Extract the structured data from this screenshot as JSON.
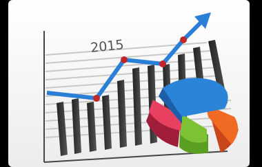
{
  "illustration": {
    "label": "2015"
  }
}
